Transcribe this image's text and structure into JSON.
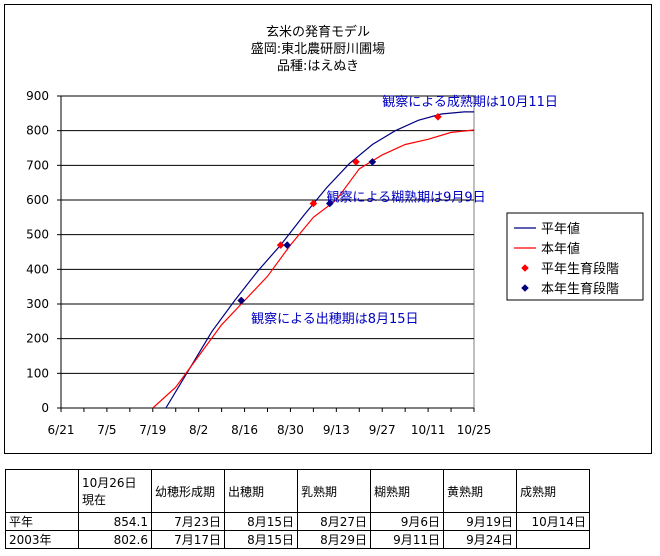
{
  "chart_data": {
    "type": "line",
    "title": [
      "玄米の発育モデル",
      "盛岡:東北農研厨川圃場",
      "品種:はえぬき"
    ],
    "x_ticks": [
      "6/21",
      "7/5",
      "7/19",
      "8/2",
      "8/16",
      "8/30",
      "9/13",
      "9/27",
      "10/11",
      "10/25"
    ],
    "ylim": [
      0,
      900
    ],
    "y_ticks": [
      0,
      100,
      200,
      300,
      400,
      500,
      600,
      700,
      800,
      900
    ],
    "grid": true,
    "legend_position": "right",
    "series": [
      {
        "name": "平年値",
        "color": "#000080",
        "kind": "line",
        "x": [
          "7/23",
          "7/30",
          "8/6",
          "8/13",
          "8/20",
          "8/27",
          "9/3",
          "9/10",
          "9/17",
          "9/24",
          "10/1",
          "10/8",
          "10/15",
          "10/22",
          "10/25"
        ],
        "y": [
          0,
          110,
          220,
          310,
          395,
          470,
          555,
          635,
          705,
          760,
          800,
          830,
          848,
          854,
          854
        ]
      },
      {
        "name": "本年値",
        "color": "#ff0000",
        "kind": "line",
        "x": [
          "7/19",
          "7/26",
          "8/2",
          "8/9",
          "8/16",
          "8/23",
          "8/30",
          "9/6",
          "9/13",
          "9/20",
          "9/27",
          "10/4",
          "10/11",
          "10/18",
          "10/25"
        ],
        "y": [
          0,
          60,
          150,
          240,
          310,
          380,
          470,
          550,
          600,
          690,
          730,
          760,
          775,
          795,
          802
        ]
      },
      {
        "name": "平年生育段階",
        "color": "#ff0000",
        "kind": "marker",
        "x": [
          "8/15",
          "8/27",
          "9/6",
          "9/19",
          "10/14"
        ],
        "y": [
          310,
          470,
          590,
          710,
          840
        ]
      },
      {
        "name": "本年生育段階",
        "color": "#000080",
        "kind": "marker",
        "x": [
          "8/15",
          "8/29",
          "9/11",
          "9/24"
        ],
        "y": [
          310,
          470,
          590,
          710
        ]
      }
    ],
    "annotations": [
      {
        "text": "観察による成熟期は10月11日",
        "x": "9/27",
        "y": 885
      },
      {
        "text": "観察による糊熟期は9月9日",
        "x": "9/10",
        "y": 610
      },
      {
        "text": "観察による出穂期は8月15日",
        "x": "8/18",
        "y": 260
      }
    ]
  },
  "table": {
    "header": [
      "",
      "10月26日現在",
      "幼穂形成期",
      "出穂期",
      "乳熟期",
      "糊熟期",
      "黄熟期",
      "成熟期"
    ],
    "rows": [
      [
        "平年",
        "854.1",
        "7月23日",
        "8月15日",
        "8月27日",
        "9月6日",
        "9月19日",
        "10月14日"
      ],
      [
        "2003年",
        "802.6",
        "7月17日",
        "8月15日",
        "8月29日",
        "9月11日",
        "9月24日",
        ""
      ]
    ]
  }
}
